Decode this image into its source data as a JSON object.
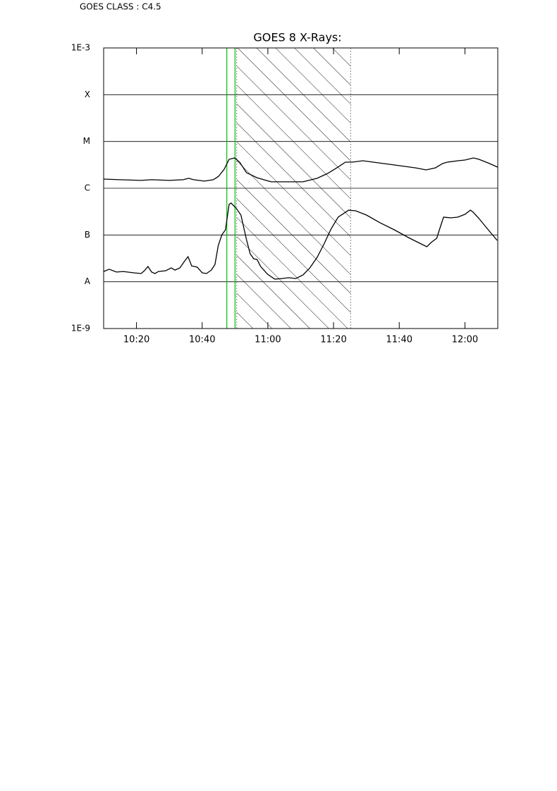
{
  "header": {
    "goes_class": "GOES CLASS : C4.5"
  },
  "chart_data": {
    "type": "line",
    "title": "GOES 8 X-Rays:",
    "xlim": [
      610,
      730
    ],
    "xticks": [
      {
        "value": 620,
        "label": "10:20"
      },
      {
        "value": 640,
        "label": "10:40"
      },
      {
        "value": 660,
        "label": "11:00"
      },
      {
        "value": 680,
        "label": "11:20"
      },
      {
        "value": 700,
        "label": "11:40"
      },
      {
        "value": 720,
        "label": "12:00"
      }
    ],
    "ylim": [
      1e-09,
      0.001
    ],
    "log_y": true,
    "yticks": [
      {
        "value": 0.001,
        "label": "1E-3"
      },
      {
        "value": 0.0001,
        "label": "X"
      },
      {
        "value": 1e-05,
        "label": "M"
      },
      {
        "value": 1e-06,
        "label": "C"
      },
      {
        "value": 1e-07,
        "label": "B"
      },
      {
        "value": 1e-08,
        "label": "A"
      },
      {
        "value": 1e-09,
        "label": "1E-9"
      }
    ],
    "grid": true,
    "vlines": {
      "color": "#00c000",
      "x": [
        647.5,
        650.0
      ]
    },
    "shaded_region": {
      "x": [
        650.5,
        685.2
      ],
      "color": "#888888"
    },
    "series": [
      {
        "color": "#000000",
        "x": [
          610.0,
          614.9,
          621.4,
          624.6,
          629.9,
          634.2,
          635.9,
          637.4,
          640.7,
          643.4,
          645.0,
          646.7,
          648.2,
          649.9,
          651.4,
          653.5,
          656.7,
          661.0,
          666.4,
          670.7,
          675.0,
          678.2,
          681.0,
          683.6,
          685.7,
          688.9,
          692.1,
          698.5,
          705.0,
          708.2,
          711.0,
          713.2,
          714.6,
          717.9,
          720.0,
          722.6,
          724.3,
          727.5,
          729.9
        ],
        "values": [
          1.57e-06,
          1.52e-06,
          1.47e-06,
          1.52e-06,
          1.47e-06,
          1.52e-06,
          1.63e-06,
          1.52e-06,
          1.42e-06,
          1.52e-06,
          1.8e-06,
          2.55e-06,
          4.15e-06,
          4.45e-06,
          3.61e-06,
          2.15e-06,
          1.68e-06,
          1.37e-06,
          1.37e-06,
          1.37e-06,
          1.63e-06,
          2.07e-06,
          2.73e-06,
          3.61e-06,
          3.61e-06,
          3.87e-06,
          3.61e-06,
          3.14e-06,
          2.73e-06,
          2.47e-06,
          2.73e-06,
          3.37e-06,
          3.61e-06,
          3.87e-06,
          4.01e-06,
          4.45e-06,
          4.15e-06,
          3.37e-06,
          2.83e-06
        ]
      },
      {
        "color": "#000000",
        "x": [
          610.0,
          611.7,
          613.9,
          616.0,
          619.2,
          621.4,
          622.4,
          623.5,
          624.6,
          625.6,
          626.7,
          628.9,
          630.6,
          631.7,
          633.2,
          634.7,
          635.7,
          636.8,
          638.5,
          640.0,
          641.3,
          642.8,
          643.9,
          644.9,
          646.0,
          647.1,
          648.2,
          648.8,
          650.3,
          651.8,
          653.5,
          654.6,
          655.7,
          656.7,
          657.8,
          659.9,
          662.1,
          664.2,
          666.4,
          668.5,
          670.7,
          672.8,
          675.0,
          677.1,
          679.2,
          681.4,
          684.6,
          686.7,
          690.0,
          694.2,
          698.5,
          702.8,
          707.1,
          708.4,
          709.7,
          711.4,
          712.5,
          713.5,
          715.7,
          717.8,
          720.0,
          721.7,
          722.5,
          724.3,
          726.4,
          729.8
        ],
        "values": [
          1.66e-08,
          1.85e-08,
          1.61e-08,
          1.66e-08,
          1.55e-08,
          1.5e-08,
          1.72e-08,
          2.12e-08,
          1.61e-08,
          1.5e-08,
          1.66e-08,
          1.72e-08,
          1.98e-08,
          1.78e-08,
          1.98e-08,
          2.8e-08,
          3.45e-08,
          2.19e-08,
          2.05e-08,
          1.55e-08,
          1.5e-08,
          1.78e-08,
          2.35e-08,
          6.01e-08,
          1.01e-07,
          1.29e-07,
          4.5e-07,
          4.82e-07,
          3.78e-07,
          2.67e-07,
          7.93e-08,
          3.96e-08,
          3.1e-08,
          3e-08,
          2.12e-08,
          1.45e-08,
          1.14e-08,
          1.17e-08,
          1.22e-08,
          1.17e-08,
          1.4e-08,
          1.98e-08,
          3.33e-08,
          6.45e-08,
          1.33e-07,
          2.41e-07,
          3.4e-07,
          3.29e-07,
          2.67e-07,
          1.82e-07,
          1.29e-07,
          8.81e-08,
          6.22e-08,
          5.6e-08,
          6.9e-08,
          8.5e-08,
          1.48e-07,
          2.41e-07,
          2.33e-07,
          2.41e-07,
          2.77e-07,
          3.4e-07,
          3.07e-07,
          2.25e-07,
          1.48e-07,
          7.66e-08
        ]
      }
    ]
  }
}
